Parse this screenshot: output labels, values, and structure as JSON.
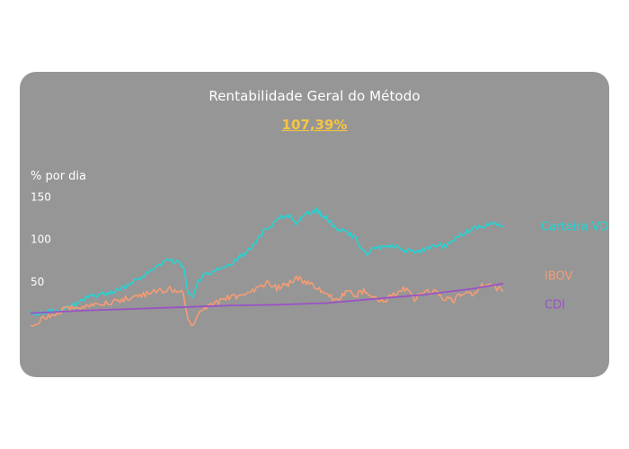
{
  "title": "Rentabilidade Geral do Método",
  "headline": "107,39%",
  "colors": {
    "card_bg": "#969696",
    "headline": "#f6c542",
    "carteira": "#22d5d5",
    "ibov": "#f59c75",
    "cdi": "#9a52c4"
  },
  "chart_data": {
    "type": "line",
    "ylabel": "% por dia",
    "yticks": [
      150,
      100,
      50
    ],
    "ylim": [
      -20,
      160
    ],
    "xlim": [
      0,
      100
    ],
    "grid": false,
    "legend": "inline-right",
    "series": [
      {
        "name": "Carteira VDI",
        "color": "#22d5d5",
        "x": [
          0,
          4,
          8,
          12,
          16,
          20,
          24,
          28,
          31,
          32,
          33,
          34,
          36,
          40,
          44,
          48,
          52,
          54,
          56,
          58,
          60,
          62,
          64,
          66,
          68,
          70,
          72,
          74,
          76,
          78,
          80,
          82,
          84,
          86,
          88,
          90,
          92,
          94,
          96
        ],
        "y": [
          13,
          15,
          20,
          33,
          36,
          46,
          62,
          77,
          69,
          38,
          32,
          51,
          60,
          68,
          86,
          114,
          130,
          120,
          130,
          135,
          126,
          113,
          108,
          102,
          82,
          91,
          90,
          92,
          88,
          84,
          88,
          94,
          92,
          100,
          107,
          113,
          116,
          119,
          115
        ],
        "label_y": 115
      },
      {
        "name": "IBOV",
        "color": "#f59c75",
        "x": [
          0,
          4,
          8,
          12,
          16,
          20,
          24,
          28,
          31,
          32,
          33,
          34,
          36,
          40,
          44,
          48,
          50,
          52,
          54,
          56,
          58,
          60,
          62,
          64,
          66,
          68,
          70,
          72,
          74,
          76,
          78,
          80,
          82,
          84,
          86,
          88,
          90,
          92,
          94,
          96
        ],
        "y": [
          0,
          10,
          20,
          22,
          26,
          31,
          36,
          42,
          38,
          8,
          -3,
          10,
          21,
          31,
          36,
          48,
          43,
          46,
          55,
          50,
          42,
          36,
          28,
          38,
          34,
          40,
          30,
          29,
          35,
          42,
          30,
          37,
          39,
          30,
          28,
          38,
          35,
          47,
          44,
          39
        ],
        "label_y": 57
      },
      {
        "name": "CDI",
        "color": "#9a52c4",
        "x": [
          0,
          10,
          20,
          30,
          40,
          50,
          60,
          70,
          80,
          90,
          96
        ],
        "y": [
          13,
          16,
          18,
          20,
          22,
          23,
          25,
          30,
          35,
          42,
          48
        ],
        "label_y": 23
      }
    ]
  }
}
